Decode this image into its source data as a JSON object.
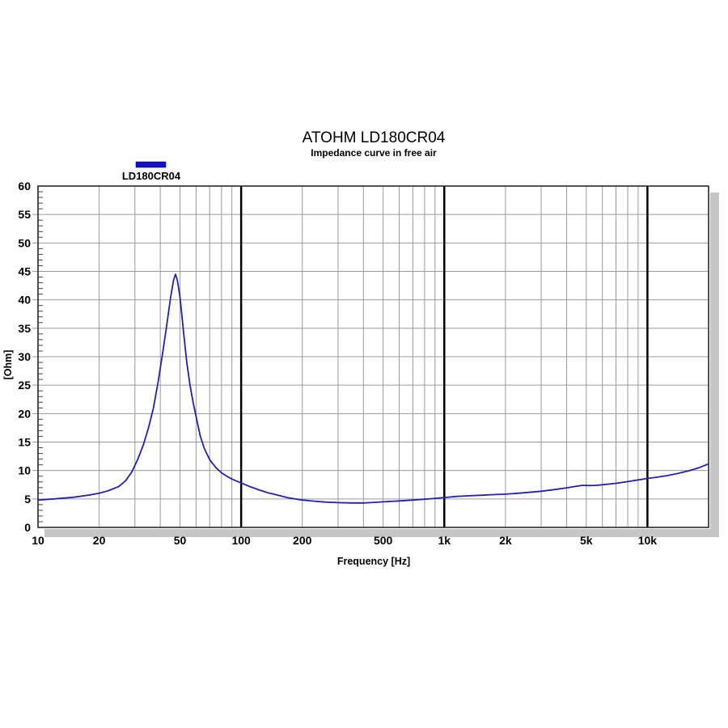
{
  "chart_data": {
    "type": "line",
    "title": "ATOHM LD180CR04",
    "subtitle": "Impedance curve in free air",
    "xlabel": "Frequency [Hz]",
    "ylabel": "[Ohm]",
    "xscale": "log",
    "xlim": [
      10,
      20000
    ],
    "ylim": [
      0,
      60
    ],
    "ytick_major_step": 5,
    "ytick_minor_step": 1,
    "grid": true,
    "legend": {
      "label": "LD180CR04",
      "color": "#1111cc",
      "position": "top-left"
    },
    "xticks": [
      {
        "v": 10,
        "l": "10"
      },
      {
        "v": 20,
        "l": "20"
      },
      {
        "v": 50,
        "l": "50"
      },
      {
        "v": 100,
        "l": "100"
      },
      {
        "v": 200,
        "l": "200"
      },
      {
        "v": 500,
        "l": "500"
      },
      {
        "v": 1000,
        "l": "1k"
      },
      {
        "v": 2000,
        "l": "2k"
      },
      {
        "v": 5000,
        "l": "5k"
      },
      {
        "v": 10000,
        "l": "10k"
      }
    ],
    "x_gridlines_minor": [
      20,
      30,
      40,
      50,
      60,
      70,
      80,
      90,
      200,
      300,
      400,
      500,
      600,
      700,
      800,
      900,
      2000,
      3000,
      4000,
      5000,
      6000,
      7000,
      8000,
      9000
    ],
    "x_gridlines_emphasis": [
      100,
      1000,
      10000
    ],
    "series": [
      {
        "name": "LD180CR04",
        "color": "#2222b0",
        "x": [
          10,
          12,
          15,
          18,
          20,
          22,
          25,
          27,
          29,
          31,
          33,
          35,
          37,
          39,
          41,
          43,
          45,
          46.5,
          47.5,
          48.5,
          50,
          52,
          54,
          56,
          58,
          60,
          63,
          66,
          70,
          75,
          80,
          85,
          90,
          100,
          110,
          120,
          135,
          150,
          170,
          200,
          230,
          260,
          300,
          350,
          400,
          450,
          500,
          600,
          700,
          800,
          900,
          1000,
          1150,
          1300,
          1500,
          1700,
          2000,
          2300,
          2600,
          3000,
          3500,
          4000,
          4500,
          4800,
          5200,
          5600,
          6000,
          7000,
          8000,
          9000,
          10000,
          11000,
          12500,
          14000,
          16000,
          18000,
          19800
        ],
        "y": [
          4.8,
          5.0,
          5.3,
          5.7,
          6.0,
          6.4,
          7.2,
          8.2,
          9.8,
          12.0,
          14.5,
          17.5,
          21.0,
          25.5,
          30.5,
          35.5,
          40.5,
          43.5,
          44.5,
          43.5,
          40.5,
          34.5,
          29.0,
          25.0,
          22.0,
          19.5,
          16.0,
          13.8,
          11.9,
          10.5,
          9.6,
          9.0,
          8.5,
          7.8,
          7.2,
          6.7,
          6.1,
          5.7,
          5.2,
          4.8,
          4.6,
          4.45,
          4.35,
          4.3,
          4.3,
          4.4,
          4.5,
          4.65,
          4.8,
          4.95,
          5.1,
          5.25,
          5.45,
          5.55,
          5.65,
          5.75,
          5.85,
          6.0,
          6.15,
          6.35,
          6.65,
          6.95,
          7.25,
          7.4,
          7.35,
          7.4,
          7.5,
          7.75,
          8.05,
          8.35,
          8.6,
          8.8,
          9.1,
          9.45,
          9.95,
          10.5,
          11.1
        ]
      }
    ],
    "peak": {
      "frequency_hz": 47.5,
      "impedance_ohm": 44.5
    },
    "colors": {
      "grid": "#999999",
      "frame": "#2a2a2a",
      "emphasis_line": "#000000",
      "shadow": "#c6c6c6",
      "background": "#ffffff"
    }
  }
}
